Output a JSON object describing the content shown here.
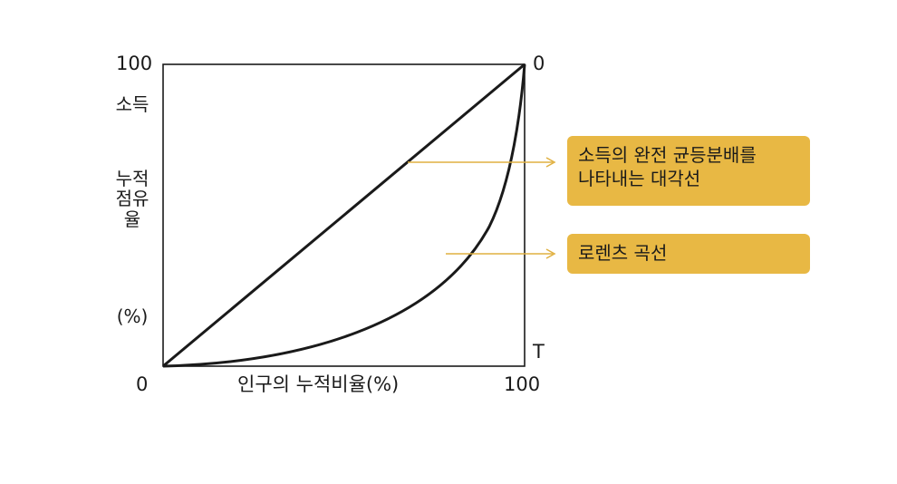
{
  "axes": {
    "y_top_label": "100",
    "origin_label": "0",
    "x_right_label": "100",
    "top_right_label": "0",
    "bottom_right_label": "T",
    "y_title_part1": "소득",
    "y_title_part2": "누적점유율",
    "y_title_part3": "(%)",
    "x_title": "인구의 누적비율(%)"
  },
  "callouts": {
    "equality_line_line1": "소득의 완전 균등분배를",
    "equality_line_line2": "나타내는 대각선",
    "lorenz_curve": "로렌츠 곡선"
  },
  "colors": {
    "callout_bg": "#e8b844",
    "pointer": "#e0b040",
    "line": "#1a1a1a"
  }
}
